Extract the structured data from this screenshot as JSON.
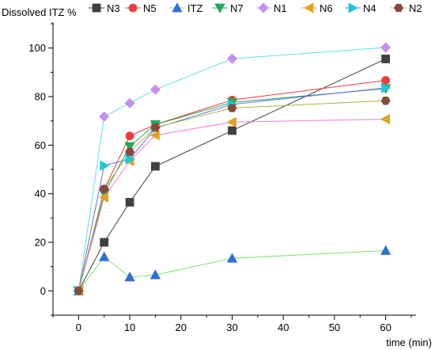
{
  "chart_data": {
    "type": "line",
    "title": "",
    "xlabel": "time (min)",
    "ylabel": "Dissolved ITZ %",
    "xlim": [
      -5,
      65
    ],
    "ylim": [
      -10,
      110
    ],
    "x_ticks": [
      0,
      10,
      20,
      30,
      40,
      50,
      60
    ],
    "y_ticks": [
      0,
      20,
      40,
      60,
      80,
      100
    ],
    "grid": false,
    "legend_position": "top",
    "x": [
      0,
      5,
      10,
      15,
      30,
      60
    ],
    "series": [
      {
        "name": "N3",
        "color": "#404040",
        "marker": "square",
        "values": [
          0,
          20,
          36.5,
          51.3,
          66,
          95.5
        ]
      },
      {
        "name": "N5",
        "color": "#f03c3c",
        "marker": "circle",
        "values": [
          0,
          41.8,
          63.8,
          68.5,
          78.6,
          86.7
        ]
      },
      {
        "name": "ITZ",
        "color": "#2e6fd9",
        "marker": "triangle-up",
        "line_color": "#7ce06a",
        "values": [
          0,
          14,
          5.7,
          6.6,
          13.4,
          16.6
        ]
      },
      {
        "name": "N7",
        "color": "#22a85a",
        "marker": "triangle-down",
        "values": [
          0,
          40,
          59.5,
          68.5,
          77.6,
          83.3
        ]
      },
      {
        "name": "N1",
        "color": "#c68ef0",
        "marker": "diamond",
        "line_color": "#5fe0e8",
        "values": [
          0,
          71.8,
          77.3,
          82.9,
          95.6,
          100.2
        ]
      },
      {
        "name": "N6",
        "color": "#e6a020",
        "marker": "triangle-left",
        "line_color": "#f07ad9",
        "values": [
          0,
          38.5,
          53.5,
          64.1,
          69.5,
          70.7
        ]
      },
      {
        "name": "N4",
        "color": "#18c8d8",
        "marker": "triangle-right",
        "line_color": "#6a6af0",
        "values": [
          0,
          51.6,
          54.3,
          67,
          76.8,
          83.6
        ]
      },
      {
        "name": "N2",
        "color": "#8a4a3a",
        "marker": "hexagon",
        "line_color": "#b0b040",
        "values": [
          0,
          42,
          57.2,
          67.3,
          75.3,
          78.3
        ]
      }
    ]
  }
}
